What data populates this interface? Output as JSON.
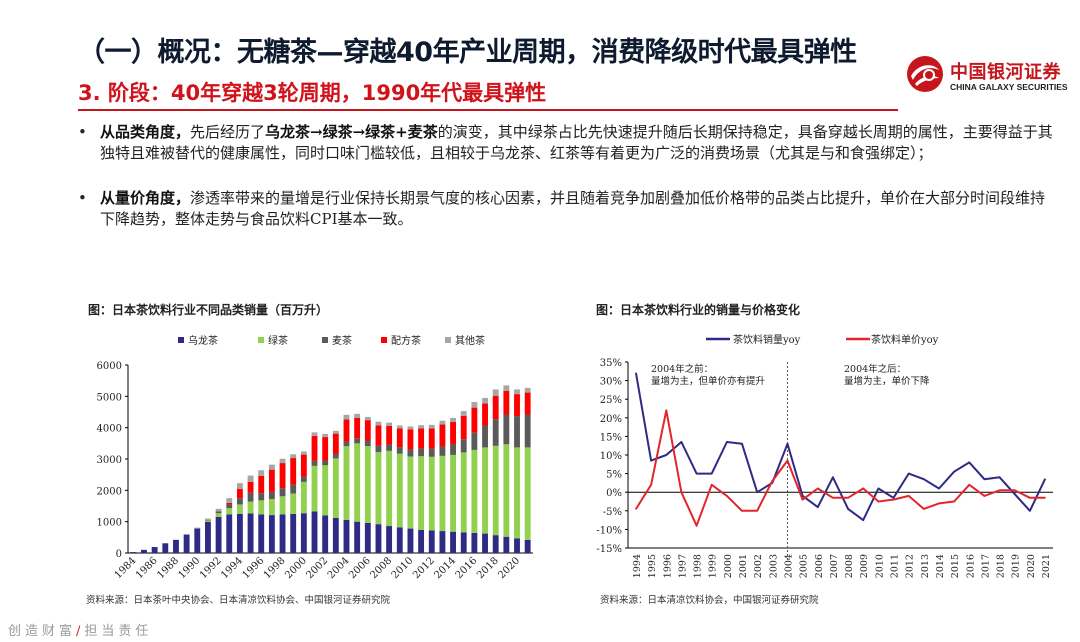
{
  "header": {
    "title": "（一）概况：无糖茶—穿越40年产业周期，消费降级时代最具弹性",
    "subtitle": "3. 阶段：40年穿越3轮周期，1990年代最具弹性"
  },
  "logo": {
    "cn": "中国银河证券",
    "en": "CHINA GALAXY SECURITIES"
  },
  "bullets": [
    {
      "dot": "•",
      "lead": "从品类角度，",
      "pre": "先后经历了",
      "highlight": "乌龙茶→绿茶→绿茶+麦茶",
      "rest": "的演变，其中绿茶占比先快速提升随后长期保持稳定，具备穿越长周期的属性，主要得益于其独特且难被替代的健康属性，同时口味门槛较低，且相较于乌龙茶、红茶等有着更为广泛的消费场景（尤其是与和食强绑定）；"
    },
    {
      "dot": "•",
      "lead": "从量价角度，",
      "pre": "渗透率带来的量增是行业保持长期景气度的核心因素，并且随着竞争加剧叠加低价格带的品类占比提升，单价在大部分时间段维持下降趋势，整体走势与食品饮料CPI基本一致。",
      "highlight": "",
      "rest": ""
    }
  ],
  "footer": {
    "left": "创造财富",
    "slash": "/",
    "right": "担当责任"
  },
  "colors": {
    "oolong": "#2e2a86",
    "green": "#92d050",
    "barley": "#5a5a5a",
    "blend": "#ff0000",
    "other": "#a6a6a6",
    "line_volume": "#2e2a86",
    "line_price": "#e3262b",
    "accent": "#c4161c"
  },
  "chart_data": [
    {
      "type": "bar",
      "stacked": true,
      "title": "图：日本茶饮料行业不同品类销量（百万升）",
      "source": "资料来源：日本茶叶中央协会、日本清凉饮料协会、中国银河证券研究院",
      "categories": [
        "1984",
        "1985",
        "1986",
        "1987",
        "1988",
        "1989",
        "1990",
        "1991",
        "1992",
        "1993",
        "1994",
        "1995",
        "1996",
        "1997",
        "1998",
        "1999",
        "2000",
        "2001",
        "2002",
        "2003",
        "2004",
        "2005",
        "2006",
        "2007",
        "2008",
        "2009",
        "2010",
        "2011",
        "2012",
        "2013",
        "2014",
        "2015",
        "2016",
        "2017",
        "2018",
        "2019",
        "2020",
        "2021"
      ],
      "tick_labels": [
        "1984",
        "1986",
        "1988",
        "1990",
        "1992",
        "1994",
        "1996",
        "1998",
        "2000",
        "2002",
        "2004",
        "2006",
        "2008",
        "2010",
        "2012",
        "2014",
        "2016",
        "2018",
        "2020"
      ],
      "ylim": [
        0,
        6000
      ],
      "yticks": [
        0,
        1000,
        2000,
        3000,
        4000,
        5000,
        6000
      ],
      "series": [
        {
          "name": "乌龙茶",
          "color_key": "oolong",
          "values": [
            30,
            100,
            190,
            310,
            420,
            590,
            780,
            990,
            1150,
            1230,
            1250,
            1260,
            1230,
            1210,
            1230,
            1250,
            1270,
            1330,
            1200,
            1120,
            1060,
            1000,
            960,
            920,
            860,
            820,
            780,
            740,
            720,
            700,
            680,
            660,
            640,
            620,
            570,
            520,
            470,
            420
          ]
        },
        {
          "name": "绿茶",
          "color_key": "green",
          "values": [
            0,
            0,
            0,
            0,
            0,
            0,
            0,
            50,
            120,
            200,
            300,
            380,
            450,
            510,
            580,
            650,
            1000,
            1450,
            1600,
            1900,
            2350,
            2500,
            2450,
            2300,
            2400,
            2350,
            2300,
            2350,
            2350,
            2400,
            2450,
            2550,
            2650,
            2750,
            2850,
            2950,
            2900,
            2950
          ]
        },
        {
          "name": "麦茶",
          "color_key": "barley",
          "values": [
            0,
            0,
            0,
            0,
            0,
            0,
            0,
            20,
            60,
            120,
            200,
            280,
            230,
            240,
            260,
            280,
            170,
            160,
            150,
            140,
            150,
            160,
            180,
            200,
            200,
            210,
            220,
            240,
            260,
            300,
            350,
            420,
            550,
            700,
            850,
            950,
            1000,
            1050
          ]
        },
        {
          "name": "配方茶",
          "color_key": "blend",
          "values": [
            0,
            0,
            0,
            0,
            0,
            0,
            0,
            0,
            0,
            50,
            300,
            350,
            550,
            700,
            800,
            850,
            700,
            800,
            750,
            650,
            700,
            650,
            650,
            650,
            600,
            600,
            650,
            650,
            650,
            700,
            700,
            750,
            800,
            700,
            750,
            750,
            700,
            700
          ]
        },
        {
          "name": "其他茶",
          "color_key": "other",
          "values": [
            0,
            0,
            0,
            0,
            0,
            0,
            30,
            40,
            80,
            150,
            180,
            200,
            180,
            160,
            140,
            120,
            100,
            110,
            100,
            90,
            150,
            130,
            100,
            120,
            100,
            90,
            90,
            100,
            110,
            120,
            130,
            150,
            180,
            180,
            200,
            180,
            150,
            150
          ]
        }
      ]
    },
    {
      "type": "line",
      "title": "图：日本茶饮料行业的销量与价格变化",
      "source": "资料来源：日本清凉饮料协会，中国银河证券研究院",
      "x": [
        "1994",
        "1995",
        "1996",
        "1997",
        "1998",
        "1999",
        "2000",
        "2001",
        "2002",
        "2003",
        "2004",
        "2005",
        "2006",
        "2007",
        "2008",
        "2009",
        "2010",
        "2011",
        "2012",
        "2013",
        "2014",
        "2015",
        "2016",
        "2017",
        "2018",
        "2019",
        "2020",
        "2021"
      ],
      "ylim": [
        -15,
        35
      ],
      "yticks": [
        -15,
        -10,
        -5,
        0,
        5,
        10,
        15,
        20,
        25,
        30,
        35
      ],
      "ytick_format": "%",
      "series": [
        {
          "name": "茶饮料销量yoy",
          "color_key": "line_volume",
          "values": [
            32,
            8.5,
            10,
            13.5,
            5,
            5,
            13.5,
            13,
            0,
            2.5,
            13,
            -1,
            -4,
            4,
            -4.5,
            -7.5,
            1,
            -1.5,
            5,
            3.5,
            1,
            5.5,
            8,
            3.5,
            4,
            -0.5,
            -5,
            3.5
          ]
        },
        {
          "name": "茶饮料单价yoy",
          "color_key": "line_price",
          "values": [
            -4.5,
            2,
            22,
            0,
            -9,
            2,
            -1,
            -5,
            -5,
            3,
            8.5,
            -2,
            1,
            -1.5,
            -1.5,
            1,
            -2.5,
            -2,
            -1,
            -4.5,
            -3,
            -2.5,
            2,
            -1,
            0.5,
            0.5,
            -1.5,
            -1.5
          ]
        }
      ],
      "divider_at": "2004",
      "annotations": [
        {
          "text": "2004年之前：",
          "region": "before"
        },
        {
          "text": "量增为主，但单价亦有提升",
          "region": "before"
        },
        {
          "text": "2004年之后：",
          "region": "after"
        },
        {
          "text": "量增为主，单价下降",
          "region": "after"
        }
      ]
    }
  ]
}
